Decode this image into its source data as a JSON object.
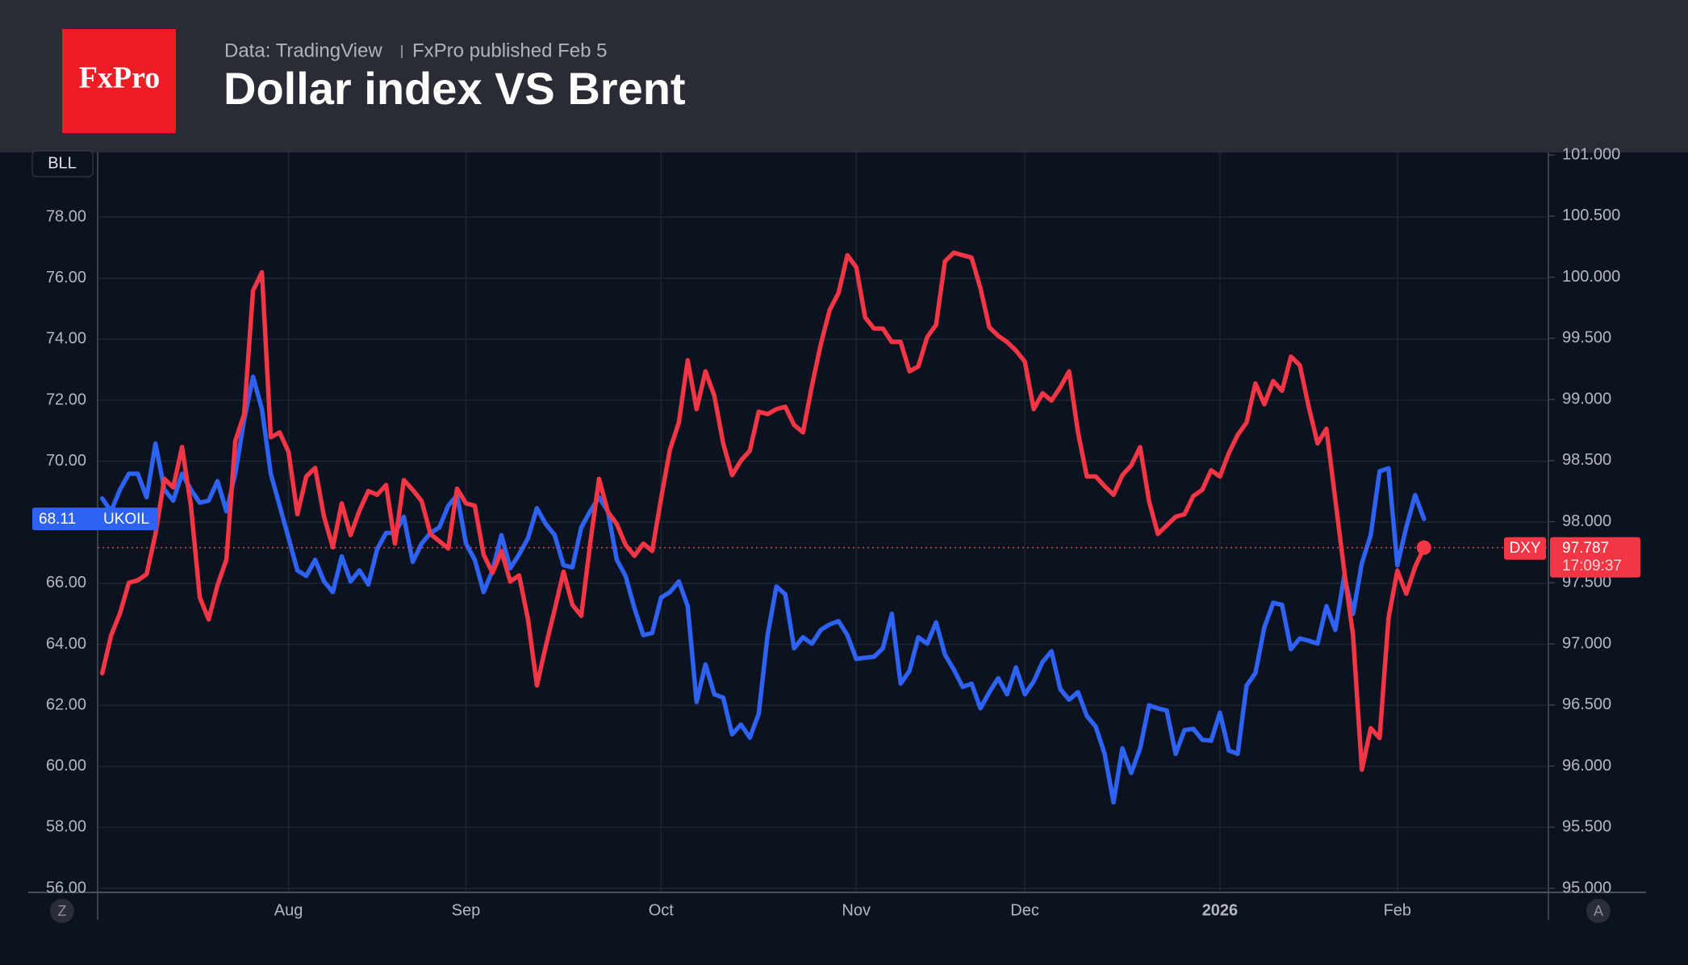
{
  "brand": {
    "logo": "FxPro",
    "source": "Data: TradingView",
    "publisher": "FxPro published Feb 5"
  },
  "controls": {
    "scale_button": "BLL",
    "zoom_button": "Z",
    "auto_button": "A"
  },
  "chart_data": {
    "type": "line",
    "title": "Dollar index VS Brent",
    "categories": [
      null,
      null,
      null,
      null,
      null,
      null,
      null,
      null,
      null,
      null,
      null,
      null,
      null,
      null,
      null,
      null,
      null,
      null,
      null,
      null,
      null,
      "Aug",
      null,
      null,
      null,
      null,
      null,
      null,
      null,
      null,
      null,
      null,
      null,
      null,
      null,
      null,
      null,
      null,
      null,
      null,
      null,
      "Sep",
      null,
      null,
      null,
      null,
      null,
      null,
      null,
      null,
      null,
      null,
      null,
      null,
      null,
      null,
      null,
      null,
      null,
      null,
      null,
      null,
      null,
      "Oct",
      null,
      null,
      null,
      null,
      null,
      null,
      null,
      null,
      null,
      null,
      null,
      null,
      null,
      null,
      null,
      null,
      null,
      null,
      null,
      null,
      null,
      "Nov",
      null,
      null,
      null,
      null,
      null,
      null,
      null,
      null,
      null,
      null,
      null,
      null,
      null,
      null,
      null,
      null,
      null,
      null,
      "Dec",
      null,
      null,
      null,
      null,
      null,
      null,
      null,
      null,
      null,
      null,
      null,
      null,
      null,
      null,
      null,
      null,
      null,
      null,
      null,
      null,
      null,
      "2026",
      null,
      null,
      null,
      null,
      null,
      null,
      null,
      null,
      null,
      null,
      null,
      null,
      null,
      null,
      null,
      null,
      null,
      null,
      null,
      "Feb",
      null,
      null,
      null
    ],
    "series": [
      {
        "name": "UKOIL",
        "color": "#2e62f2",
        "values": [
          68.78,
          68.36,
          69.07,
          69.59,
          69.59,
          68.82,
          70.58,
          69.07,
          68.71,
          69.59,
          69.07,
          68.64,
          68.71,
          69.35,
          68.36,
          69.59,
          71.36,
          72.77,
          71.71,
          69.59,
          68.54,
          67.48,
          66.42,
          66.24,
          66.77,
          66.06,
          65.71,
          66.88,
          66.06,
          66.42,
          65.96,
          67.12,
          67.65,
          67.65,
          68.18,
          66.7,
          67.3,
          67.65,
          67.83,
          68.54,
          68.89,
          67.3,
          66.77,
          65.71,
          66.42,
          67.58,
          66.49,
          66.95,
          67.48,
          68.46,
          67.94,
          67.58,
          66.59,
          66.52,
          67.83,
          68.36,
          68.82,
          68.36,
          66.77,
          66.24,
          65.18,
          64.3,
          64.37,
          65.53,
          65.71,
          66.06,
          65.25,
          62.11,
          63.34,
          62.36,
          62.25,
          61.05,
          61.37,
          60.94,
          61.72,
          64.3,
          65.89,
          65.64,
          63.87,
          64.23,
          64.02,
          64.47,
          64.65,
          64.76,
          64.3,
          63.52,
          63.56,
          63.59,
          63.87,
          65.0,
          62.71,
          63.13,
          64.23,
          64.02,
          64.72,
          63.66,
          63.17,
          62.6,
          62.71,
          61.9,
          62.43,
          62.89,
          62.36,
          63.24,
          62.36,
          62.78,
          63.42,
          63.77,
          62.53,
          62.18,
          62.43,
          61.65,
          61.3,
          60.41,
          58.82,
          60.59,
          59.78,
          60.59,
          62.0,
          61.9,
          61.83,
          60.41,
          61.19,
          61.23,
          60.87,
          60.84,
          61.76,
          60.52,
          60.41,
          62.64,
          63.06,
          64.55,
          65.36,
          65.29,
          63.84,
          64.19,
          64.12,
          64.02,
          65.25,
          64.47,
          66.24,
          65.0,
          66.66,
          67.58,
          69.67,
          69.77,
          66.59,
          67.83,
          68.89,
          68.11
        ]
      },
      {
        "name": "DXY",
        "color": "#f23645",
        "axis": "y2",
        "countdown": "17:09:37",
        "values": [
          96.76,
          97.07,
          97.25,
          97.5,
          97.52,
          97.57,
          97.9,
          98.35,
          98.28,
          98.61,
          98.13,
          97.38,
          97.2,
          97.48,
          97.69,
          98.66,
          98.88,
          99.89,
          100.04,
          98.69,
          98.73,
          98.57,
          98.06,
          98.37,
          98.44,
          98.04,
          97.79,
          98.15,
          97.89,
          98.09,
          98.25,
          98.22,
          98.3,
          97.82,
          98.34,
          98.26,
          98.17,
          97.9,
          97.84,
          97.78,
          98.27,
          98.15,
          98.13,
          97.73,
          97.58,
          97.76,
          97.51,
          97.56,
          97.2,
          96.66,
          96.98,
          97.28,
          97.59,
          97.32,
          97.23,
          97.82,
          98.35,
          98.08,
          97.98,
          97.81,
          97.72,
          97.82,
          97.76,
          98.19,
          98.59,
          98.81,
          99.32,
          98.92,
          99.23,
          99.03,
          98.64,
          98.38,
          98.5,
          98.58,
          98.9,
          98.88,
          98.92,
          98.94,
          98.79,
          98.73,
          99.11,
          99.45,
          99.73,
          99.87,
          100.18,
          100.08,
          99.67,
          99.58,
          99.58,
          99.47,
          99.47,
          99.23,
          99.27,
          99.51,
          99.61,
          100.13,
          100.2,
          100.18,
          100.16,
          99.91,
          99.59,
          99.52,
          99.47,
          99.4,
          99.31,
          98.92,
          99.05,
          98.99,
          99.1,
          99.23,
          98.73,
          98.37,
          98.37,
          98.29,
          98.22,
          98.38,
          98.46,
          98.61,
          98.17,
          97.9,
          97.97,
          98.04,
          98.06,
          98.21,
          98.26,
          98.42,
          98.37,
          98.56,
          98.71,
          98.81,
          99.13,
          98.96,
          99.15,
          99.07,
          99.35,
          99.28,
          98.94,
          98.64,
          98.76,
          98.18,
          97.6,
          97.07,
          95.97,
          96.31,
          96.23,
          97.21,
          97.6,
          97.41,
          97.63,
          97.787
        ]
      }
    ],
    "ylim": [
      56,
      80.12
    ],
    "yticks": [
      {
        "value": 56,
        "label": "56.00"
      },
      {
        "value": 58,
        "label": "58.00"
      },
      {
        "value": 60,
        "label": "60.00"
      },
      {
        "value": 62,
        "label": "62.00"
      },
      {
        "value": 64,
        "label": "64.00"
      },
      {
        "value": 66,
        "label": "66.00"
      },
      {
        "value": 68,
        "label": "68.00"
      },
      {
        "value": 70,
        "label": "70.00"
      },
      {
        "value": 72,
        "label": "72.00"
      },
      {
        "value": 74,
        "label": "74.00"
      },
      {
        "value": 76,
        "label": "76.00"
      },
      {
        "value": 78,
        "label": "78.00"
      }
    ],
    "y2lim": [
      95,
      101.02
    ],
    "y2ticks": [
      {
        "value": 95,
        "label": "95.000"
      },
      {
        "value": 95.5,
        "label": "95.500"
      },
      {
        "value": 96,
        "label": "96.000"
      },
      {
        "value": 96.5,
        "label": "96.500"
      },
      {
        "value": 97,
        "label": "97.000"
      },
      {
        "value": 97.5,
        "label": "97.500"
      },
      {
        "value": 98,
        "label": "98.000"
      },
      {
        "value": 98.5,
        "label": "98.500"
      },
      {
        "value": 99,
        "label": "99.000"
      },
      {
        "value": 99.5,
        "label": "99.500"
      },
      {
        "value": 100,
        "label": "100.000"
      },
      {
        "value": 100.5,
        "label": "100.500"
      },
      {
        "value": 101,
        "label": "101.000"
      }
    ],
    "grid": true
  }
}
